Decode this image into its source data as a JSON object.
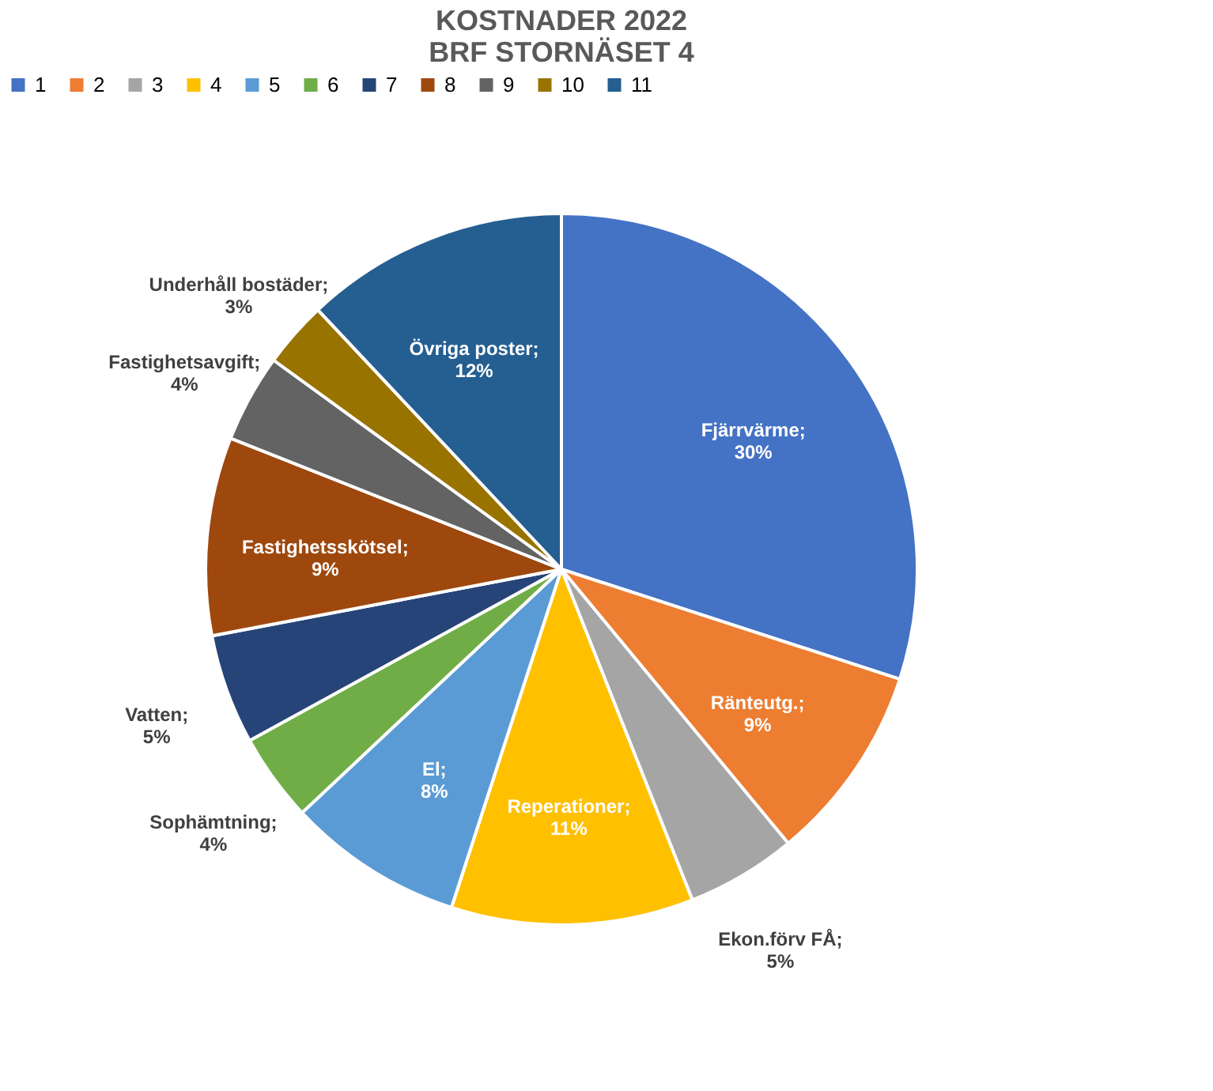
{
  "chart_data": {
    "type": "pie",
    "title": [
      "KOSTNADER 2022",
      "BRF STORNÄSET 4"
    ],
    "categories": [
      "1",
      "2",
      "3",
      "4",
      "5",
      "6",
      "7",
      "8",
      "9",
      "10",
      "11"
    ],
    "values": [
      30,
      9,
      5,
      11,
      8,
      4,
      5,
      9,
      4,
      3,
      12
    ],
    "value_labels": [
      "Fjärrvärme; 30%",
      "Ränteutg.; 9%",
      "Ekon.förv FÅ; 5%",
      "Reperationer; 11%",
      "El; 8%",
      "Sophämtning; 4%",
      "Vatten; 5%",
      "Fastighetsskötsel; 9%",
      "Fastighetsavgift; 4%",
      "Underhåll bostäder; 3%",
      "Övriga poster; 12%"
    ],
    "colors": [
      "#4472c4",
      "#ed7d31",
      "#a5a5a5",
      "#ffc000",
      "#5b9bd5",
      "#70ad47",
      "#264478",
      "#9e480e",
      "#636363",
      "#997300",
      "#255e91"
    ],
    "legend": "top"
  }
}
